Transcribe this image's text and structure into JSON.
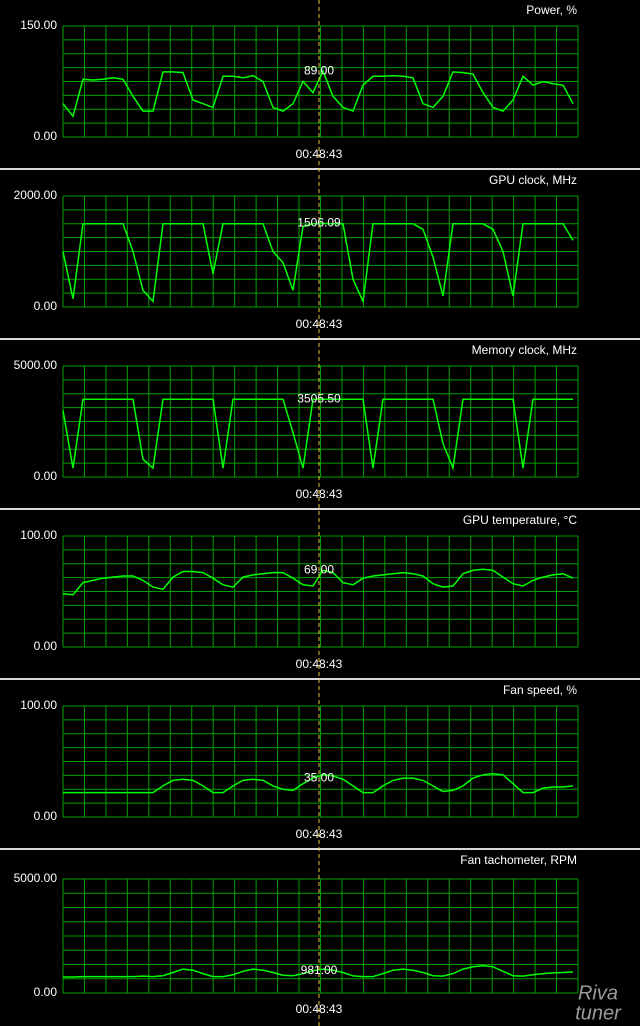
{
  "chart_data": [
    {
      "type": "line",
      "title": "Power, %",
      "color": "#00ff00",
      "grid": true,
      "ylim": [
        0,
        150
      ],
      "yticks": [
        {
          "value": 0,
          "label": "0.00"
        },
        {
          "value": 150,
          "label": "150.00"
        }
      ],
      "cursor": {
        "value": 89,
        "label": "89.00",
        "time": "00:48:43"
      },
      "values": [
        45,
        28,
        78,
        77,
        78,
        80,
        78,
        55,
        35,
        35,
        88,
        88,
        87,
        50,
        45,
        40,
        82,
        82,
        80,
        83,
        75,
        40,
        35,
        45,
        75,
        60,
        89,
        55,
        40,
        35,
        70,
        82,
        82,
        83,
        82,
        80,
        45,
        40,
        55,
        88,
        87,
        85,
        60,
        40,
        35,
        50,
        82,
        70,
        75,
        72,
        70,
        45
      ]
    },
    {
      "type": "line",
      "title": "GPU clock, MHz",
      "color": "#00ff00",
      "grid": true,
      "ylim": [
        0,
        2000
      ],
      "yticks": [
        {
          "value": 0,
          "label": "0.00"
        },
        {
          "value": 2000,
          "label": "2000.00"
        }
      ],
      "cursor": {
        "value": 1506.09,
        "label": "1506.09",
        "time": "00:48:43"
      },
      "values": [
        1000,
        150,
        1500,
        1500,
        1500,
        1500,
        1500,
        1000,
        300,
        100,
        1500,
        1500,
        1500,
        1500,
        1500,
        600,
        1500,
        1500,
        1500,
        1500,
        1500,
        1000,
        800,
        300,
        1450,
        1500,
        1506,
        1500,
        1500,
        500,
        100,
        1500,
        1500,
        1500,
        1500,
        1500,
        1400,
        900,
        200,
        1500,
        1500,
        1500,
        1500,
        1400,
        1000,
        200,
        1500,
        1500,
        1500,
        1500,
        1500,
        1200
      ]
    },
    {
      "type": "line",
      "title": "Memory clock, MHz",
      "color": "#00ff00",
      "grid": true,
      "ylim": [
        0,
        5000
      ],
      "yticks": [
        {
          "value": 0,
          "label": "0.00"
        },
        {
          "value": 5000,
          "label": "5000.00"
        }
      ],
      "cursor": {
        "value": 3505.5,
        "label": "3505.50",
        "time": "00:48:43"
      },
      "values": [
        3000,
        400,
        3505,
        3505,
        3505,
        3505,
        3505,
        3505,
        800,
        400,
        3505,
        3505,
        3505,
        3505,
        3505,
        3505,
        400,
        3505,
        3505,
        3505,
        3505,
        3505,
        3505,
        2000,
        400,
        3505,
        3505,
        3505,
        3505,
        3505,
        3505,
        400,
        3505,
        3505,
        3505,
        3505,
        3505,
        3505,
        1500,
        400,
        3505,
        3505,
        3505,
        3505,
        3505,
        3505,
        400,
        3505,
        3505,
        3505,
        3505,
        3505
      ]
    },
    {
      "type": "line",
      "title": "GPU temperature, °C",
      "color": "#00ff00",
      "grid": true,
      "ylim": [
        0,
        100
      ],
      "yticks": [
        {
          "value": 0,
          "label": "0.00"
        },
        {
          "value": 100,
          "label": "100.00"
        }
      ],
      "cursor": {
        "value": 69,
        "label": "69.00",
        "time": "00:48:43"
      },
      "values": [
        48,
        47,
        58,
        60,
        62,
        63,
        64,
        64,
        60,
        54,
        52,
        63,
        68,
        68,
        67,
        62,
        56,
        54,
        63,
        65,
        66,
        67,
        67,
        62,
        56,
        55,
        69,
        67,
        58,
        56,
        62,
        64,
        65,
        66,
        67,
        66,
        64,
        57,
        54,
        55,
        66,
        69,
        70,
        69,
        63,
        57,
        55,
        60,
        63,
        65,
        66,
        62
      ]
    },
    {
      "type": "line",
      "title": "Fan speed, %",
      "color": "#00ff00",
      "grid": true,
      "ylim": [
        0,
        100
      ],
      "yticks": [
        {
          "value": 0,
          "label": "0.00"
        },
        {
          "value": 100,
          "label": "100.00"
        }
      ],
      "cursor": {
        "value": 35,
        "label": "35.00",
        "time": "00:48:43"
      },
      "values": [
        22,
        22,
        22,
        22,
        22,
        22,
        22,
        22,
        22,
        22,
        28,
        33,
        34,
        33,
        28,
        22,
        22,
        28,
        33,
        34,
        33,
        28,
        25,
        24,
        30,
        35,
        38,
        37,
        34,
        28,
        22,
        22,
        28,
        33,
        35,
        35,
        33,
        28,
        23,
        24,
        28,
        35,
        38,
        39,
        38,
        30,
        22,
        22,
        26,
        27,
        27,
        28
      ]
    },
    {
      "type": "line",
      "title": "Fan tachometer, RPM",
      "color": "#00ff00",
      "grid": true,
      "ylim": [
        0,
        5000
      ],
      "yticks": [
        {
          "value": 0,
          "label": "0.00"
        },
        {
          "value": 5000,
          "label": "5000.00"
        }
      ],
      "cursor": {
        "value": 981,
        "label": "981.00",
        "time": "00:48:43"
      },
      "values": [
        700,
        700,
        720,
        720,
        720,
        720,
        720,
        720,
        740,
        720,
        760,
        900,
        1050,
        1000,
        850,
        720,
        720,
        800,
        950,
        1050,
        1000,
        900,
        780,
        760,
        850,
        981,
        1050,
        1000,
        900,
        750,
        720,
        720,
        850,
        1000,
        1050,
        1000,
        900,
        760,
        740,
        850,
        1050,
        1150,
        1200,
        1150,
        950,
        760,
        740,
        800,
        850,
        880,
        900,
        920
      ]
    }
  ],
  "watermark": [
    "Riva",
    "tuner"
  ]
}
